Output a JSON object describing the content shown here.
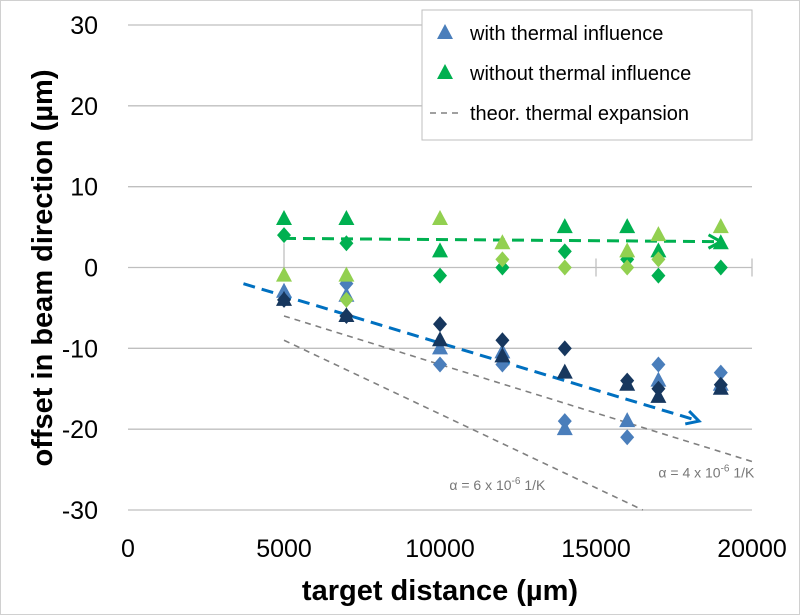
{
  "chart_data": {
    "type": "scatter",
    "xlabel": "target distance (µm)",
    "ylabel": "offset in beam direction (µm)",
    "xlim": [
      0,
      20000
    ],
    "ylim": [
      -30,
      30
    ],
    "xticks": [
      "0",
      "5000",
      "10000",
      "15000",
      "20000"
    ],
    "xtick_values": [
      0,
      5000,
      10000,
      15000,
      20000
    ],
    "yticks": [
      "30",
      "20",
      "10",
      "0",
      "-10",
      "-20",
      "-30"
    ],
    "ytick_values": [
      30,
      20,
      10,
      0,
      -10,
      -20,
      -30
    ],
    "grid": "horizontal",
    "legend_position": "top-right",
    "legend": [
      {
        "label": "with thermal influence",
        "marker": "triangle",
        "color": "#4a7ebb"
      },
      {
        "label": "without thermal influence",
        "marker": "triangle",
        "color": "#00b050"
      },
      {
        "label": "theor. thermal expansion",
        "marker": "dashed-line",
        "color": "#808080"
      }
    ],
    "series": [
      {
        "name": "with thermal influence (triangles, light)",
        "marker": "triangle",
        "color": "#4a7ebb",
        "x": [
          5000,
          7000,
          10000,
          12000,
          14000,
          16000,
          17000,
          19000
        ],
        "y": [
          -3,
          -3.5,
          -10,
          -10.5,
          -20,
          -19,
          -14,
          -14.5
        ]
      },
      {
        "name": "with thermal influence (diamonds, light)",
        "marker": "diamond",
        "color": "#4a7ebb",
        "x": [
          7000,
          10000,
          12000,
          14000,
          16000,
          17000,
          19000
        ],
        "y": [
          -2,
          -12,
          -12,
          -19,
          -21,
          -12,
          -13
        ]
      },
      {
        "name": "with thermal influence (triangles, dark)",
        "marker": "triangle",
        "color": "#17375e",
        "x": [
          5000,
          7000,
          10000,
          12000,
          14000,
          16000,
          17000,
          19000
        ],
        "y": [
          -4,
          -6,
          -9,
          -11,
          -13,
          -14.5,
          -16,
          -15
        ]
      },
      {
        "name": "with thermal influence (diamonds, dark)",
        "marker": "diamond",
        "color": "#17375e",
        "x": [
          5000,
          7000,
          10000,
          12000,
          14000,
          16000,
          17000,
          19000
        ],
        "y": [
          -4,
          -6,
          -7,
          -9,
          -10,
          -14,
          -15,
          -14.5
        ]
      },
      {
        "name": "without thermal influence (triangles, dark)",
        "marker": "triangle",
        "color": "#00b050",
        "x": [
          5000,
          7000,
          10000,
          14000,
          16000,
          17000,
          19000
        ],
        "y": [
          6,
          6,
          2,
          5,
          5,
          2,
          3
        ]
      },
      {
        "name": "without thermal influence (diamonds, dark)",
        "marker": "diamond",
        "color": "#00b050",
        "x": [
          5000,
          7000,
          10000,
          12000,
          14000,
          16000,
          17000,
          19000
        ],
        "y": [
          4,
          3,
          -1,
          0,
          2,
          1,
          -1,
          0
        ]
      },
      {
        "name": "without thermal influence (triangles, light)",
        "marker": "triangle",
        "color": "#92d050",
        "x": [
          5000,
          7000,
          10000,
          12000,
          16000,
          17000,
          19000
        ],
        "y": [
          -1,
          -1,
          6,
          3,
          2,
          4,
          5
        ]
      },
      {
        "name": "without thermal influence (diamonds, light)",
        "marker": "diamond",
        "color": "#92d050",
        "x": [
          7000,
          12000,
          14000,
          16000,
          17000
        ],
        "y": [
          -4,
          1,
          0,
          0,
          1
        ]
      }
    ],
    "trend_lines": [
      {
        "name": "trend without thermal influence",
        "color": "#00b050",
        "x": [
          5000,
          19000
        ],
        "y": [
          3.6,
          3.2
        ],
        "arrow": true
      },
      {
        "name": "trend with thermal influence",
        "color": "#0070c0",
        "x": [
          3700,
          18300
        ],
        "y": [
          -2,
          -19
        ],
        "arrow": true
      },
      {
        "name": "theor. thermal expansion 4e-6",
        "color": "#808080",
        "x": [
          5000,
          20000
        ],
        "y": [
          -6,
          -24
        ],
        "arrow": false
      },
      {
        "name": "theor. thermal expansion 6e-6",
        "color": "#808080",
        "x": [
          5000,
          16500
        ],
        "y": [
          -9,
          -30
        ],
        "arrow": false
      }
    ],
    "annotations": [
      {
        "text": "α = 6 x 10",
        "sup": "-6",
        "unit": " 1/K",
        "x": 10300,
        "y": -27.5
      },
      {
        "text": "α = 4 x 10",
        "sup": "-6",
        "unit": " 1/K",
        "x": 17000,
        "y": -26
      }
    ]
  }
}
